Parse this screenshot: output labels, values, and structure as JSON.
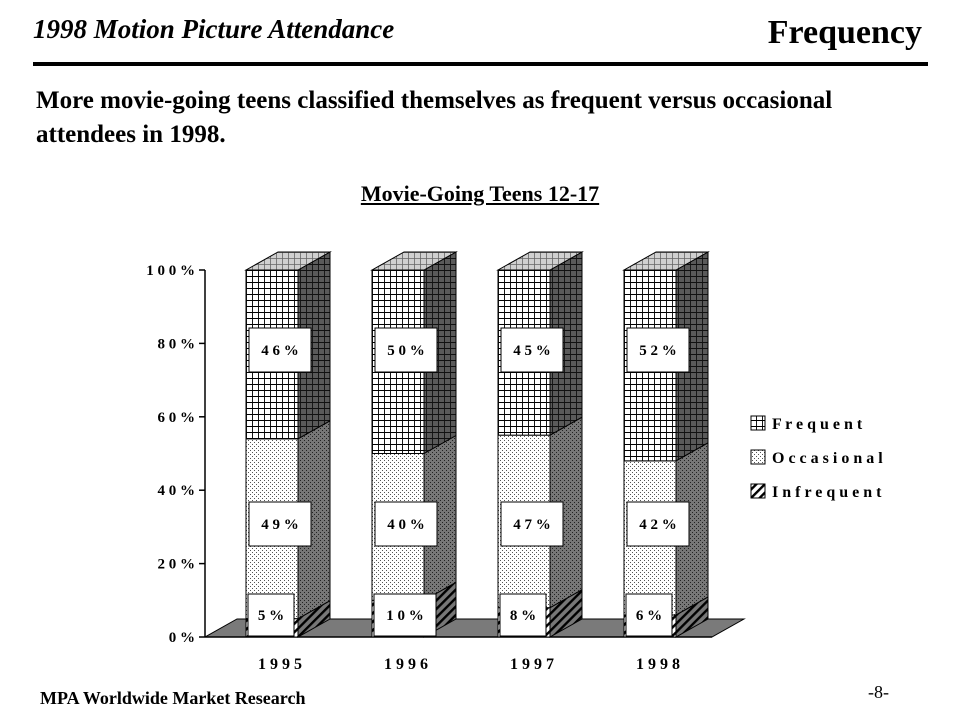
{
  "header": {
    "title": "1998 Motion Picture Attendance",
    "section": "Frequency"
  },
  "headline": "More movie-going teens classified themselves as frequent versus occasional attendees in 1998.",
  "chart_data": {
    "type": "bar",
    "stacked": true,
    "three_d": true,
    "title": "Movie-Going Teens 12-17",
    "categories": [
      "1 9 9 5",
      "1 9 9 6",
      "1 9 9 7",
      "1 9 9 8"
    ],
    "series": [
      {
        "name": "I n f r e q u e n t",
        "values": [
          5,
          10,
          8,
          6
        ],
        "labels": [
          "5 %",
          "1 0 %",
          "8 %",
          "6 %"
        ]
      },
      {
        "name": "O c c a s i o n a l",
        "values": [
          49,
          40,
          47,
          42
        ],
        "labels": [
          "4 9 %",
          "4 0 %",
          "4 7 %",
          "4 2 %"
        ]
      },
      {
        "name": "F r e q u e n t",
        "values": [
          46,
          50,
          45,
          52
        ],
        "labels": [
          "4 6 %",
          "5 0 %",
          "4 5 %",
          "5 2 %"
        ]
      }
    ],
    "yticks": [
      "0 %",
      "2 0 %",
      "4 0 %",
      "6 0 %",
      "8 0 %",
      "1 0 0 %"
    ],
    "ylim": [
      0,
      100
    ],
    "legend_position": "right"
  },
  "footer": {
    "source": "MPA Worldwide Market Research",
    "page": "-8-"
  }
}
